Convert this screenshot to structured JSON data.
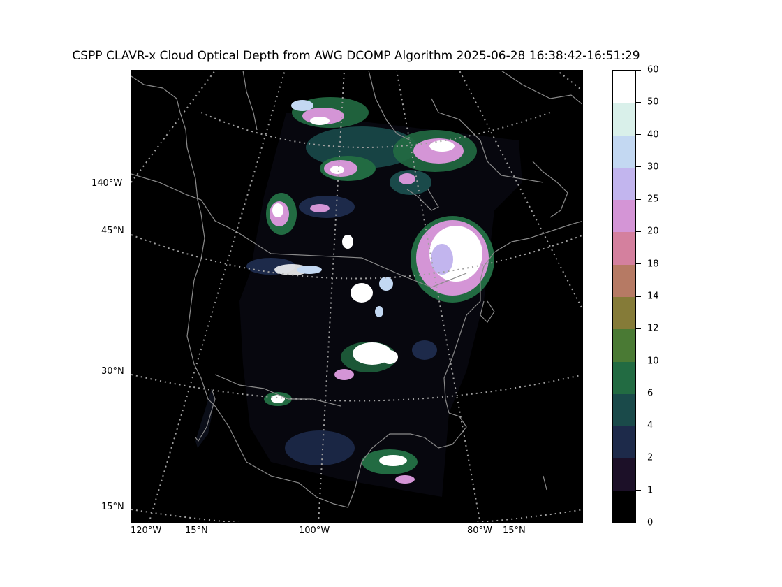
{
  "title": "CSPP CLAVR-x Cloud Optical Depth from AWG DCOMP Algorithm 2025-06-28 16:38:42-16:51:29",
  "left_labels": [
    "140°W",
    "45°N",
    "30°N",
    "15°N"
  ],
  "bottom_labels": [
    "120°W",
    "15°N",
    "100°W",
    "80°W",
    "15°N"
  ],
  "colorbar": {
    "ticks": [
      "0",
      "1",
      "2",
      "4",
      "6",
      "10",
      "12",
      "14",
      "18",
      "20",
      "25",
      "30",
      "40",
      "50",
      "60"
    ],
    "colors": [
      "#000000",
      "#1c1028",
      "#1d2a4a",
      "#1a4a4a",
      "#226b42",
      "#4a7a34",
      "#857b38",
      "#b67a64",
      "#d4809e",
      "#d495d6",
      "#c2b5ee",
      "#c3d8f2",
      "#d9f0ea",
      "#ffffff"
    ]
  }
}
